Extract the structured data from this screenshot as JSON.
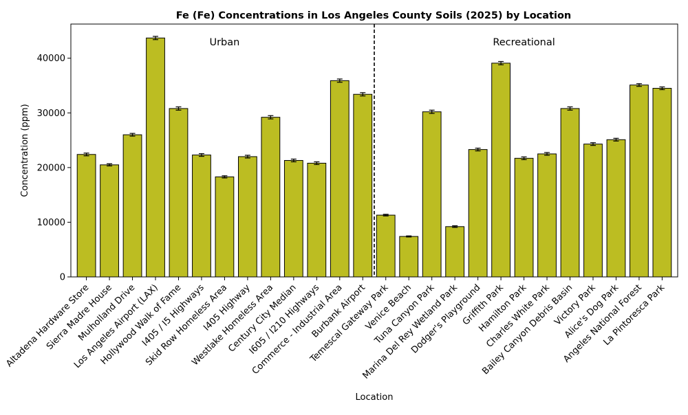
{
  "chart_data": {
    "type": "bar",
    "title": "Fe (Fe) Concentrations in Los Angeles County Soils (2025) by Location",
    "xlabel": "Location",
    "ylabel": "Concentration (ppm)",
    "ylim": [
      0,
      46250
    ],
    "yticks": [
      0,
      10000,
      20000,
      30000,
      40000
    ],
    "grid": false,
    "bar_color": "#bcbd22",
    "bar_edge_color": "#000000",
    "categories": [
      "Altadena Hardware Store",
      "Sierra Madre House",
      "Mulholland Drive",
      "Los Angeles Airport (LAX)",
      "Hollywood Walk of Fame",
      "I405 / I5 Highways",
      "Skid Row Homeless Area",
      "I405 Highway",
      "Westlake Homeless Area",
      "Century City Median",
      "I605 / I210 Highways",
      "Commerce - Industrial Area",
      "Burbank Airport",
      "Temescal Gateway Park",
      "Venice Beach",
      "Tuna Canyon Park",
      "Marina Del Rey Wetland Park",
      "Dodger's Playground",
      "Griffith Park",
      "Hamilton Park",
      "Charles White Park",
      "Bailey Canyon Debris Basin",
      "Victory Park",
      "Alice's Dog Park",
      "Angeles National Forest",
      "La Pintoresca Park"
    ],
    "values": [
      22400,
      20500,
      26000,
      43700,
      30800,
      22300,
      18300,
      22000,
      29200,
      21300,
      20800,
      35900,
      33400,
      11300,
      7400,
      30200,
      9200,
      23300,
      39100,
      21700,
      22500,
      30800,
      24300,
      25100,
      35100,
      34500
    ],
    "errors": [
      250,
      200,
      250,
      300,
      300,
      250,
      200,
      250,
      300,
      250,
      250,
      300,
      300,
      150,
      100,
      300,
      150,
      250,
      300,
      250,
      250,
      300,
      250,
      250,
      250,
      250
    ],
    "groups": [
      {
        "label": "Urban",
        "start_index": 0,
        "end_index": 12
      },
      {
        "label": "Recreational",
        "start_index": 13,
        "end_index": 25
      }
    ],
    "divider_after_index": 12
  }
}
